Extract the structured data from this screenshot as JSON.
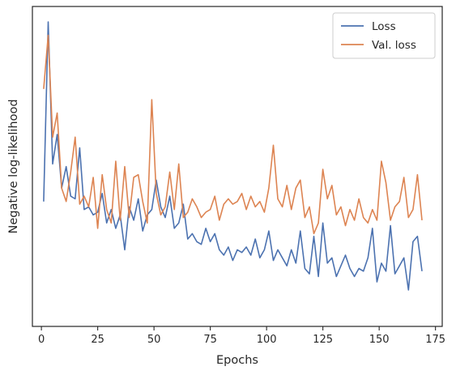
{
  "chart_data": {
    "type": "line",
    "xlabel": "Epochs",
    "ylabel": "Negative log-likelihood",
    "xlim": [
      -4,
      178
    ],
    "ylim": [
      0,
      1
    ],
    "y_tick_labels_shown": false,
    "x_ticks": [
      0,
      25,
      50,
      75,
      100,
      125,
      150,
      175
    ],
    "grid": false,
    "legend_position": "top-right",
    "series": [
      {
        "name": "Loss",
        "color": "#4c72b0",
        "x": [
          1,
          3,
          5,
          7,
          9,
          11,
          13,
          15,
          17,
          19,
          21,
          23,
          25,
          27,
          29,
          31,
          33,
          35,
          37,
          39,
          41,
          43,
          45,
          47,
          49,
          51,
          53,
          55,
          57,
          59,
          61,
          63,
          65,
          67,
          69,
          71,
          73,
          75,
          77,
          79,
          81,
          83,
          85,
          87,
          89,
          91,
          93,
          95,
          97,
          99,
          101,
          103,
          105,
          107,
          109,
          111,
          113,
          115,
          117,
          119,
          121,
          123,
          125,
          127,
          129,
          131,
          133,
          135,
          137,
          139,
          141,
          143,
          145,
          147,
          149,
          151,
          153,
          155,
          157,
          159,
          161,
          163,
          165,
          167,
          169
        ],
        "values": [
          0.33,
          1.0,
          0.47,
          0.58,
          0.38,
          0.46,
          0.35,
          0.34,
          0.53,
          0.3,
          0.31,
          0.28,
          0.29,
          0.36,
          0.25,
          0.3,
          0.23,
          0.28,
          0.15,
          0.31,
          0.26,
          0.34,
          0.22,
          0.28,
          0.3,
          0.41,
          0.31,
          0.27,
          0.35,
          0.23,
          0.25,
          0.32,
          0.19,
          0.21,
          0.18,
          0.17,
          0.23,
          0.18,
          0.21,
          0.15,
          0.13,
          0.16,
          0.11,
          0.15,
          0.14,
          0.16,
          0.13,
          0.19,
          0.12,
          0.15,
          0.22,
          0.11,
          0.15,
          0.12,
          0.09,
          0.15,
          0.1,
          0.22,
          0.08,
          0.06,
          0.2,
          0.05,
          0.25,
          0.1,
          0.12,
          0.05,
          0.09,
          0.13,
          0.08,
          0.05,
          0.08,
          0.07,
          0.12,
          0.23,
          0.03,
          0.1,
          0.07,
          0.24,
          0.06,
          0.09,
          0.12,
          0.0,
          0.18,
          0.2,
          0.07
        ]
      },
      {
        "name": "Val. loss",
        "color": "#dd8452",
        "x": [
          1,
          3,
          5,
          7,
          9,
          11,
          13,
          15,
          17,
          19,
          21,
          23,
          25,
          27,
          29,
          31,
          33,
          35,
          37,
          39,
          41,
          43,
          45,
          47,
          49,
          51,
          53,
          55,
          57,
          59,
          61,
          63,
          65,
          67,
          69,
          71,
          73,
          75,
          77,
          79,
          81,
          83,
          85,
          87,
          89,
          91,
          93,
          95,
          97,
          99,
          101,
          103,
          105,
          107,
          109,
          111,
          113,
          115,
          117,
          119,
          121,
          123,
          125,
          127,
          129,
          131,
          133,
          135,
          137,
          139,
          141,
          143,
          145,
          147,
          149,
          151,
          153,
          155,
          157,
          159,
          161,
          163,
          165,
          167,
          169
        ],
        "values": [
          0.75,
          0.95,
          0.57,
          0.66,
          0.38,
          0.33,
          0.44,
          0.57,
          0.32,
          0.35,
          0.31,
          0.42,
          0.23,
          0.43,
          0.3,
          0.25,
          0.48,
          0.26,
          0.46,
          0.27,
          0.42,
          0.43,
          0.33,
          0.25,
          0.71,
          0.36,
          0.28,
          0.31,
          0.44,
          0.3,
          0.47,
          0.27,
          0.29,
          0.34,
          0.31,
          0.27,
          0.29,
          0.3,
          0.35,
          0.26,
          0.32,
          0.34,
          0.32,
          0.33,
          0.36,
          0.3,
          0.35,
          0.31,
          0.33,
          0.29,
          0.38,
          0.54,
          0.34,
          0.31,
          0.39,
          0.3,
          0.38,
          0.41,
          0.27,
          0.31,
          0.21,
          0.25,
          0.45,
          0.34,
          0.39,
          0.28,
          0.31,
          0.24,
          0.3,
          0.26,
          0.34,
          0.27,
          0.25,
          0.3,
          0.26,
          0.48,
          0.4,
          0.26,
          0.31,
          0.33,
          0.42,
          0.27,
          0.3,
          0.43,
          0.26
        ]
      }
    ]
  }
}
